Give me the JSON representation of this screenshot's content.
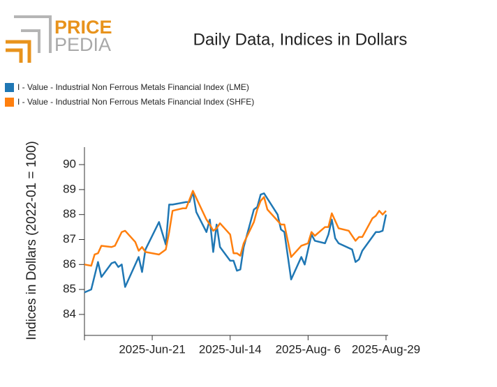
{
  "logo": {
    "brand_first": "PRICE",
    "brand_second": "PEDIA"
  },
  "chart_data": {
    "type": "line",
    "title": "Daily Data, Indices in Dollars",
    "ylabel": "Indices in Dollars (2022-01 = 100)",
    "xlim": [
      "2025-06-01",
      "2025-08-29"
    ],
    "xticks": [
      {
        "value": "2025-06-21",
        "label": "2025-Jun-21"
      },
      {
        "value": "2025-07-14",
        "label": "2025-Jul-14"
      },
      {
        "value": "2025-08-06",
        "label": "2025-Aug- 6"
      },
      {
        "value": "2025-08-29",
        "label": "2025-Aug-29"
      }
    ],
    "ylim": [
      83.16,
      90.7
    ],
    "yticks": [
      84,
      85,
      86,
      87,
      88,
      89,
      90
    ],
    "series": [
      {
        "name": "I - Value - Industrial Non Ferrous Metals Financial Index (LME)",
        "color": "#1f77b4",
        "x": [
          "2025-06-01",
          "2025-06-03",
          "2025-06-05",
          "2025-06-06",
          "2025-06-09",
          "2025-06-10",
          "2025-06-11",
          "2025-06-12",
          "2025-06-13",
          "2025-06-17",
          "2025-06-18",
          "2025-06-19",
          "2025-06-23",
          "2025-06-25",
          "2025-06-26",
          "2025-06-27",
          "2025-07-01",
          "2025-07-02",
          "2025-07-03",
          "2025-07-04",
          "2025-07-07",
          "2025-07-08",
          "2025-07-09",
          "2025-07-10",
          "2025-07-11",
          "2025-07-14",
          "2025-07-15",
          "2025-07-16",
          "2025-07-17",
          "2025-07-18",
          "2025-07-21",
          "2025-07-22",
          "2025-07-23",
          "2025-07-24",
          "2025-07-28",
          "2025-07-29",
          "2025-07-30",
          "2025-08-01",
          "2025-08-04",
          "2025-08-05",
          "2025-08-07",
          "2025-08-08",
          "2025-08-11",
          "2025-08-12",
          "2025-08-13",
          "2025-08-14",
          "2025-08-15",
          "2025-08-19",
          "2025-08-20",
          "2025-08-21",
          "2025-08-22",
          "2025-08-26",
          "2025-08-27",
          "2025-08-28",
          "2025-08-29"
        ],
        "values": [
          84.88,
          85.0,
          86.1,
          85.5,
          86.05,
          86.1,
          85.9,
          86.0,
          85.1,
          86.3,
          85.7,
          86.6,
          87.7,
          86.8,
          88.4,
          88.4,
          88.5,
          88.5,
          88.9,
          88.1,
          87.3,
          87.8,
          86.5,
          87.6,
          86.7,
          86.15,
          86.15,
          85.75,
          85.8,
          86.7,
          88.2,
          88.3,
          88.8,
          88.85,
          88.0,
          87.4,
          87.3,
          85.4,
          86.3,
          86.0,
          87.2,
          86.95,
          86.85,
          87.2,
          87.8,
          87.05,
          86.85,
          86.6,
          86.1,
          86.2,
          86.55,
          87.3,
          87.3,
          87.35,
          88.0
        ]
      },
      {
        "name": "I - Value - Industrial Non Ferrous Metals Financial Index (SHFE)",
        "color": "#ff7f0e",
        "x": [
          "2025-06-01",
          "2025-06-03",
          "2025-06-04",
          "2025-06-05",
          "2025-06-06",
          "2025-06-09",
          "2025-06-10",
          "2025-06-12",
          "2025-06-13",
          "2025-06-16",
          "2025-06-17",
          "2025-06-18",
          "2025-06-19",
          "2025-06-23",
          "2025-06-25",
          "2025-06-26",
          "2025-06-27",
          "2025-06-30",
          "2025-07-01",
          "2025-07-03",
          "2025-07-07",
          "2025-07-08",
          "2025-07-09",
          "2025-07-10",
          "2025-07-11",
          "2025-07-14",
          "2025-07-15",
          "2025-07-16",
          "2025-07-17",
          "2025-07-18",
          "2025-07-21",
          "2025-07-22",
          "2025-07-23",
          "2025-07-24",
          "2025-07-25",
          "2025-07-28",
          "2025-07-29",
          "2025-07-30",
          "2025-08-01",
          "2025-08-04",
          "2025-08-05",
          "2025-08-06",
          "2025-08-07",
          "2025-08-08",
          "2025-08-11",
          "2025-08-12",
          "2025-08-13",
          "2025-08-15",
          "2025-08-18",
          "2025-08-20",
          "2025-08-21",
          "2025-08-22",
          "2025-08-25",
          "2025-08-26",
          "2025-08-27",
          "2025-08-28",
          "2025-08-29"
        ],
        "values": [
          86.0,
          85.95,
          86.4,
          86.45,
          86.75,
          86.7,
          86.75,
          87.3,
          87.35,
          86.9,
          86.55,
          86.7,
          86.5,
          86.4,
          86.6,
          87.3,
          88.15,
          88.25,
          88.25,
          88.95,
          87.8,
          87.6,
          87.35,
          87.45,
          87.65,
          87.2,
          86.45,
          86.45,
          86.35,
          86.85,
          87.7,
          88.2,
          88.55,
          88.7,
          88.2,
          87.75,
          87.6,
          87.6,
          86.3,
          86.75,
          86.8,
          86.85,
          87.3,
          87.15,
          87.5,
          87.5,
          88.05,
          87.45,
          87.35,
          86.95,
          87.1,
          87.1,
          87.85,
          87.95,
          88.15,
          88.0,
          88.15
        ]
      }
    ]
  }
}
